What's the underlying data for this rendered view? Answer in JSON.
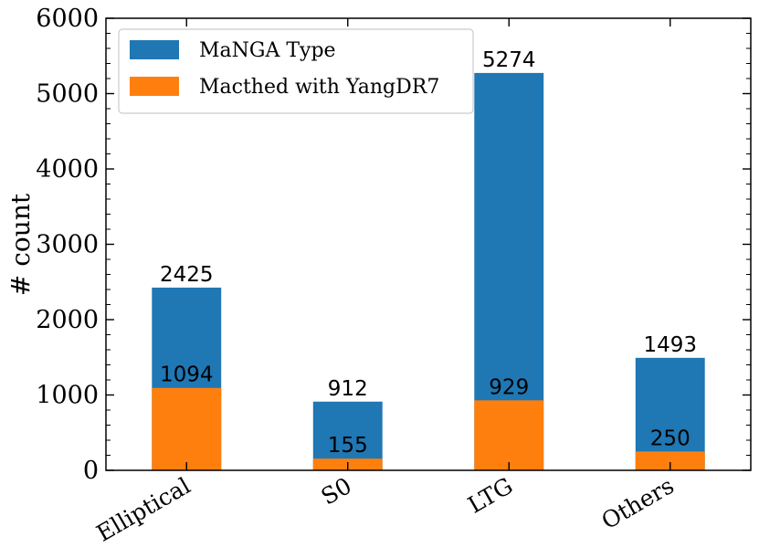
{
  "chart_data": {
    "type": "bar",
    "stacking": "overlay",
    "title": "",
    "xlabel": "",
    "ylabel": "# count",
    "ylim": [
      0,
      6000
    ],
    "yticks": [
      0,
      1000,
      2000,
      3000,
      4000,
      5000,
      6000
    ],
    "categories": [
      "Elliptical",
      "S0",
      "LTG",
      "Others"
    ],
    "series": [
      {
        "name": "MaNGA Type",
        "color": "#1f77b4",
        "values": [
          2425,
          912,
          5274,
          1493
        ],
        "labels": [
          "2425",
          "912",
          "5274",
          "1493"
        ]
      },
      {
        "name": "Macthed with YangDR7",
        "color": "#ff7f0e",
        "values": [
          1094,
          155,
          929,
          250
        ],
        "labels": [
          "1094",
          "155",
          "929",
          "250"
        ]
      }
    ],
    "legend": {
      "position": "top-left"
    }
  }
}
